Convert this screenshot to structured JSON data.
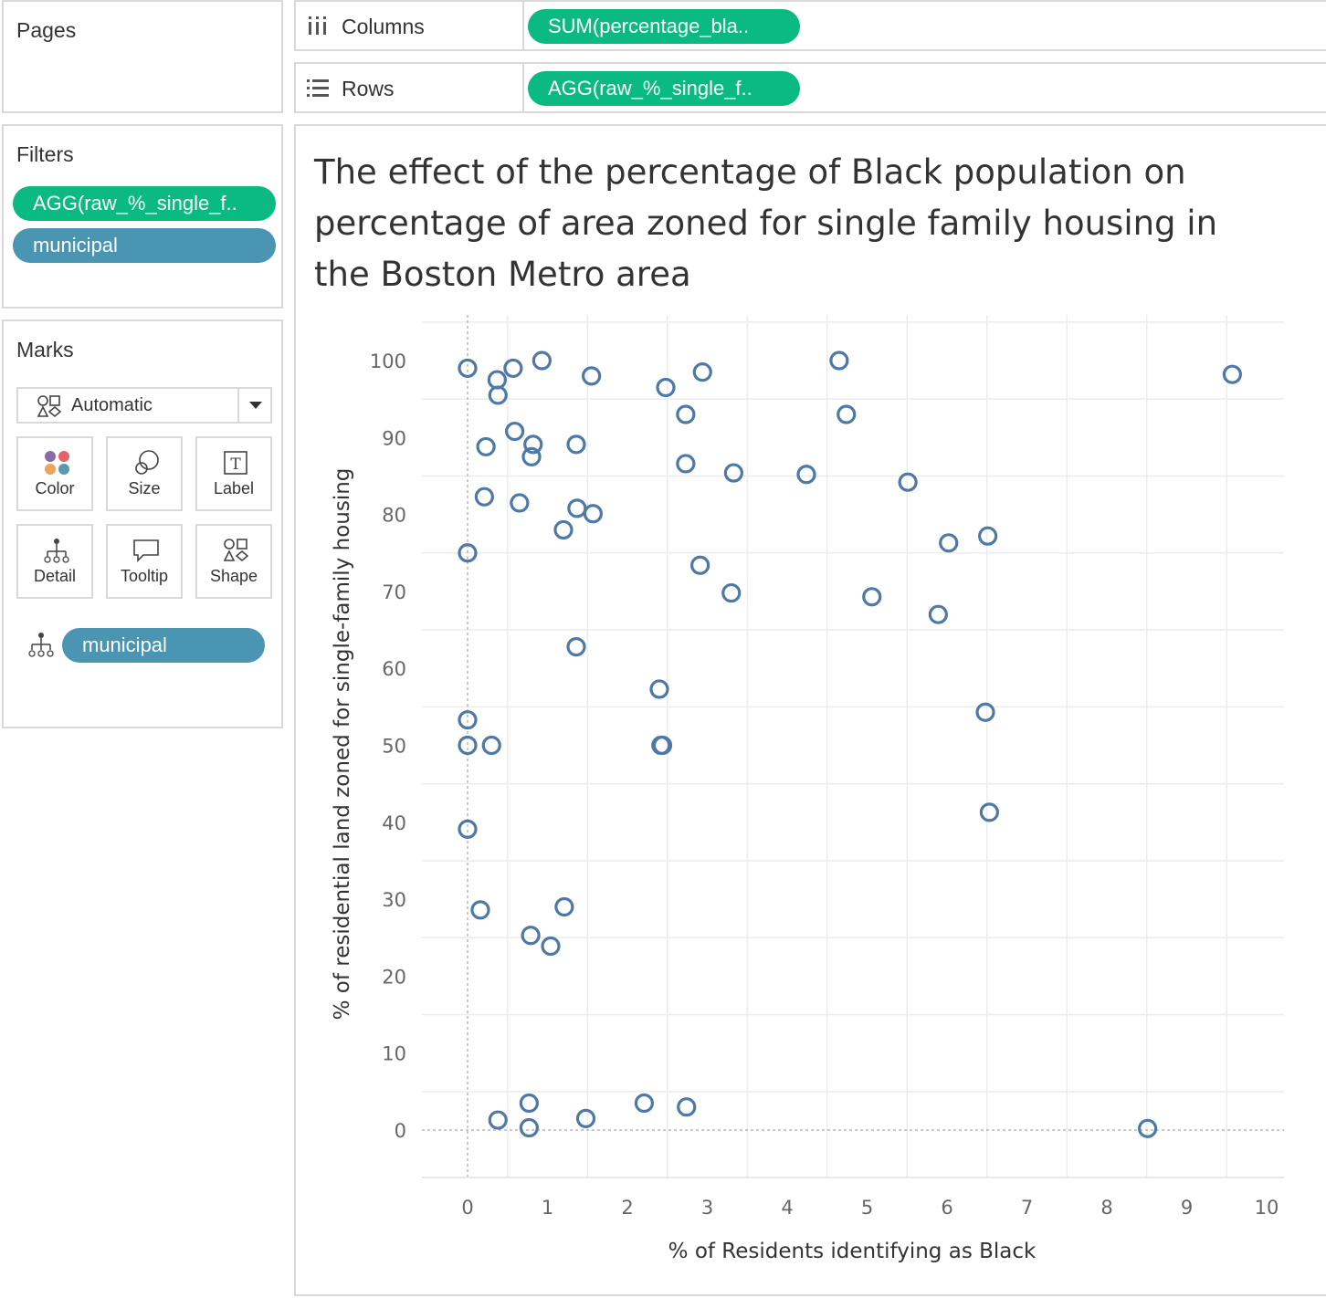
{
  "colors": {
    "green_pill": "#0bba80",
    "blue_pill": "#4a96b2",
    "mark": "#4e79a7"
  },
  "pages": {
    "title": "Pages"
  },
  "shelves": {
    "columns": {
      "label": "Columns",
      "pill": "SUM(percentage_bla.."
    },
    "rows": {
      "label": "Rows",
      "pill": "AGG(raw_%_single_f.."
    }
  },
  "filters": {
    "title": "Filters",
    "pills": [
      "AGG(raw_%_single_f..",
      "municipal"
    ]
  },
  "marks": {
    "title": "Marks",
    "type_selector": "Automatic",
    "buttons": [
      "Color",
      "Size",
      "Label",
      "Detail",
      "Tooltip",
      "Shape"
    ],
    "detail_pill": "municipal"
  },
  "chart_data": {
    "type": "scatter",
    "title_lines": [
      "The effect of the percentage of Black population on",
      "percentage of area zoned for single family housing in",
      "the Boston Metro area"
    ],
    "xlabel": "% of Residents identifying as Black",
    "ylabel": "% of residential land zoned for single-family housing",
    "xlim": [
      -0.55,
      10.2
    ],
    "ylim": [
      -6,
      106.5
    ],
    "xticks": [
      "0",
      "1",
      "2",
      "3",
      "4",
      "5",
      "6",
      "7",
      "8",
      "9",
      "10"
    ],
    "yticks": [
      "0",
      "10",
      "20",
      "30",
      "40",
      "50",
      "60",
      "70",
      "80",
      "90",
      "100"
    ],
    "points": [
      [
        0.0,
        99.0
      ],
      [
        0.37,
        97.5
      ],
      [
        0.57,
        99.0
      ],
      [
        0.93,
        100.0
      ],
      [
        0.38,
        95.5
      ],
      [
        1.55,
        98.0
      ],
      [
        2.48,
        96.5
      ],
      [
        2.94,
        98.5
      ],
      [
        4.65,
        100.0
      ],
      [
        9.57,
        98.2
      ],
      [
        2.73,
        93.0
      ],
      [
        4.74,
        93.0
      ],
      [
        0.59,
        90.8
      ],
      [
        0.23,
        88.8
      ],
      [
        0.82,
        89.1
      ],
      [
        0.8,
        87.5
      ],
      [
        1.36,
        89.1
      ],
      [
        2.73,
        86.6
      ],
      [
        3.33,
        85.4
      ],
      [
        4.24,
        85.2
      ],
      [
        5.51,
        84.2
      ],
      [
        0.21,
        82.3
      ],
      [
        0.65,
        81.5
      ],
      [
        1.37,
        80.8
      ],
      [
        1.57,
        80.1
      ],
      [
        1.2,
        78.0
      ],
      [
        6.51,
        77.2
      ],
      [
        6.02,
        76.3
      ],
      [
        0.0,
        75.0
      ],
      [
        2.91,
        73.4
      ],
      [
        3.3,
        69.8
      ],
      [
        5.06,
        69.3
      ],
      [
        5.89,
        67.0
      ],
      [
        1.36,
        62.8
      ],
      [
        2.4,
        57.3
      ],
      [
        0.0,
        53.3
      ],
      [
        0.0,
        50.0
      ],
      [
        0.3,
        50.0
      ],
      [
        2.42,
        50.0
      ],
      [
        2.44,
        50.0
      ],
      [
        6.48,
        54.3
      ],
      [
        6.53,
        41.3
      ],
      [
        0.0,
        39.1
      ],
      [
        0.16,
        28.6
      ],
      [
        1.21,
        29.0
      ],
      [
        0.79,
        25.3
      ],
      [
        1.04,
        23.9
      ],
      [
        0.38,
        1.3
      ],
      [
        0.77,
        3.5
      ],
      [
        0.77,
        0.3
      ],
      [
        1.48,
        1.5
      ],
      [
        2.21,
        3.5
      ],
      [
        2.74,
        3.0
      ],
      [
        8.51,
        0.2
      ]
    ]
  }
}
